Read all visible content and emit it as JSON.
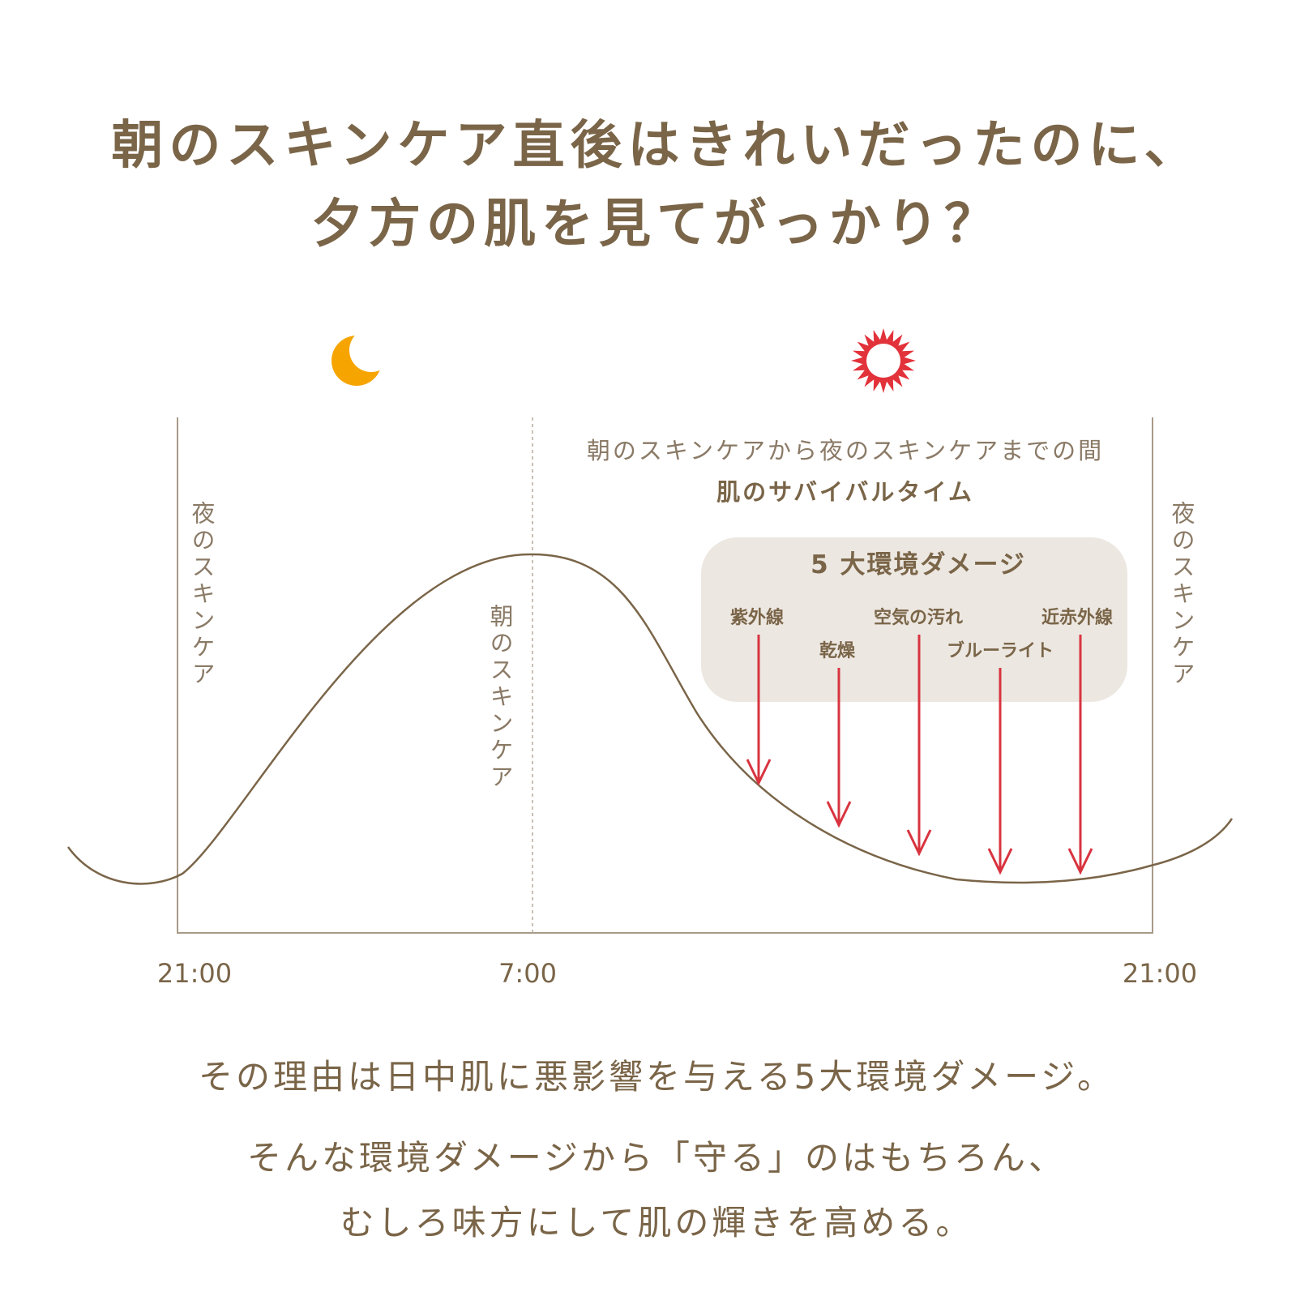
{
  "headline": {
    "line1": "朝のスキンケア直後はきれいだったのに、",
    "line2": "夕方の肌を見てがっかり？"
  },
  "icons": {
    "night": "moon-icon",
    "day": "sun-icon",
    "moon_color": "#f6a500",
    "sun_color": "#e2323a"
  },
  "diagram": {
    "label_night_left": "夜のスキンケア",
    "label_morning": "朝のスキンケア",
    "label_night_right": "夜のスキンケア",
    "caption_line1": "朝のスキンケアから夜のスキンケアまでの間",
    "caption_line2": "肌のサバイバルタイム",
    "box_title": "5 大環境ダメージ",
    "damages": [
      "紫外線",
      "乾燥",
      "空気の汚れ",
      "ブルーライト",
      "近赤外線"
    ],
    "time_labels": [
      "21:00",
      "7:00",
      "21:00"
    ],
    "colors": {
      "curve": "#7a6548",
      "arrow": "#d8343f",
      "box": "#ece7e1",
      "axis": "#a89a88"
    }
  },
  "body": {
    "line1": "その理由は日中肌に悪影響を与える5大環境ダメージ。",
    "line2": "そんな環境ダメージから「守る」のはもちろん、",
    "line3": "むしろ味方にして肌の輝きを高める。"
  }
}
